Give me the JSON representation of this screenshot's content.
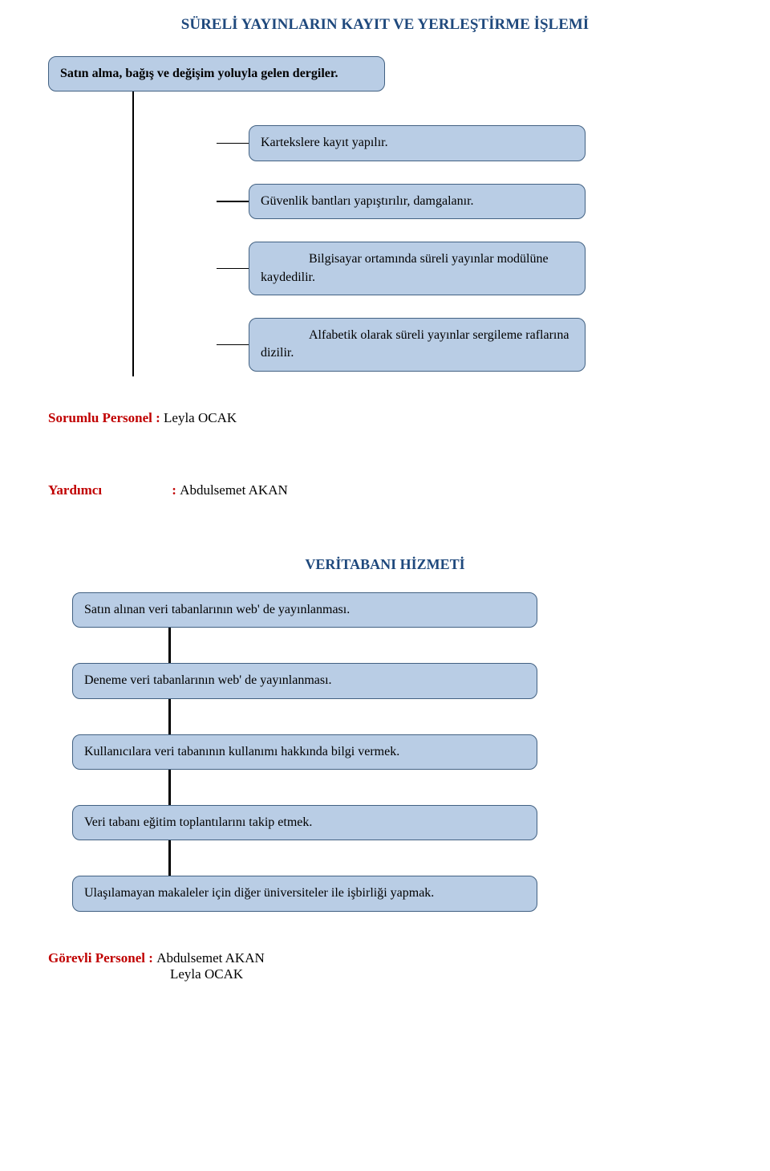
{
  "colors": {
    "box_fill": "#b9cde5",
    "box_border": "#426182",
    "title_color": "#1f497d",
    "red": "#c00000",
    "black": "#000000"
  },
  "fonts": {
    "title_size": 19,
    "body_size": 16,
    "subtitle_size": 18,
    "label_size": 17
  },
  "section1": {
    "title": "SÜRELİ YAYINLARIN KAYIT VE YERLEŞTİRME İŞLEMİ",
    "root": "Satın alma, bağış ve değişim yoluyla gelen dergiler.",
    "children": [
      "Kartekslere kayıt yapılır.",
      "Güvenlik bantları yapıştırılır, damgalanır.",
      "Bilgisayar ortamında süreli yayınlar modülüne kaydedilir.",
      "Alfabetik olarak süreli yayınlar sergileme raflarına dizilir."
    ],
    "child_last_first": [
      false,
      false,
      true,
      true
    ]
  },
  "labels": {
    "sorumlu_label": "Sorumlu Personel : ",
    "sorumlu_value": "Leyla OCAK",
    "yardimci_label": "Yardımcı",
    "yardimci_sep": " : ",
    "yardimci_value": "Abdulsemet AKAN",
    "gorevli_label": "Görevli Personel : ",
    "gorevli_value1": "Abdulsemet AKAN",
    "gorevli_value2": "Leyla OCAK"
  },
  "section2": {
    "title": "VERİTABANI HİZMETİ",
    "steps": [
      "Satın alınan veri tabanlarının web' de yayınlanması.",
      "Deneme veri tabanlarının web' de yayınlanması.",
      "Kullanıcılara veri tabanının kullanımı hakkında bilgi vermek.",
      "Veri tabanı eğitim toplantılarını takip etmek.",
      "Ulaşılamayan makaleler için diğer üniversiteler ile işbirliği yapmak."
    ]
  }
}
